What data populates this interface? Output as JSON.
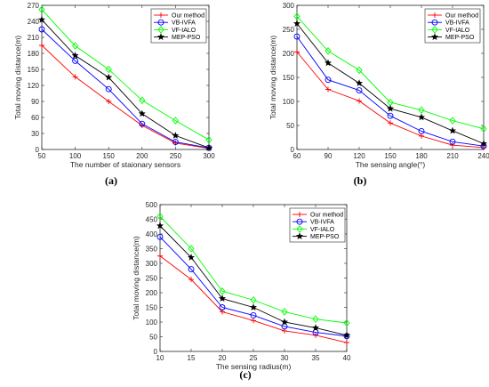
{
  "figure": {
    "panels": [
      "(a)",
      "(b)",
      "(c)"
    ]
  },
  "colors": {
    "Our method": "#ff0000",
    "VB-IVFA": "#0000ff",
    "VF-IALO": "#00ff00",
    "MEP-PSO": "#000000"
  },
  "chart_data": [
    {
      "type": "line",
      "panel": "(a)",
      "xlabel": "The number of staionary sensors",
      "ylabel": "Total moving distance(m)",
      "x": [
        50,
        100,
        150,
        200,
        250,
        300
      ],
      "xticks": [
        50,
        100,
        150,
        200,
        250,
        300
      ],
      "yticks": [
        0,
        30,
        60,
        90,
        120,
        150,
        180,
        210,
        240,
        270
      ],
      "xlim": [
        50,
        300
      ],
      "ylim": [
        0,
        270
      ],
      "legend_position": "top-right",
      "grid": false,
      "series": [
        {
          "name": "Our method",
          "marker": "plus",
          "values": [
            195,
            136,
            90,
            45,
            12,
            2
          ]
        },
        {
          "name": "VB-IVFA",
          "marker": "circle",
          "values": [
            225,
            166,
            113,
            48,
            14,
            3
          ]
        },
        {
          "name": "VF-IALO",
          "marker": "diamond",
          "values": [
            262,
            194,
            150,
            92,
            54,
            18
          ]
        },
        {
          "name": "MEP-PSO",
          "marker": "star",
          "values": [
            243,
            176,
            135,
            67,
            26,
            3
          ]
        }
      ]
    },
    {
      "type": "line",
      "panel": "(b)",
      "xlabel": "The sensing angle(°)",
      "ylabel": "Total moving distance(m)",
      "x": [
        60,
        90,
        120,
        150,
        180,
        210,
        240
      ],
      "xticks": [
        60,
        90,
        120,
        150,
        180,
        210,
        240
      ],
      "yticks": [
        0,
        50,
        100,
        150,
        200,
        250,
        300
      ],
      "xlim": [
        60,
        240
      ],
      "ylim": [
        0,
        300
      ],
      "legend_position": "top-right",
      "grid": false,
      "series": [
        {
          "name": "Our method",
          "marker": "plus",
          "values": [
            203,
            125,
            101,
            55,
            28,
            9,
            4
          ]
        },
        {
          "name": "VB-IVFA",
          "marker": "circle",
          "values": [
            235,
            145,
            123,
            70,
            38,
            16,
            7
          ]
        },
        {
          "name": "VF-IALO",
          "marker": "diamond",
          "values": [
            277,
            205,
            165,
            98,
            82,
            60,
            43
          ]
        },
        {
          "name": "MEP-PSO",
          "marker": "star",
          "values": [
            262,
            180,
            138,
            85,
            67,
            39,
            12
          ]
        }
      ]
    },
    {
      "type": "line",
      "panel": "(c)",
      "xlabel": "The sensing radius(m)",
      "ylabel": "Total moving distance(m)",
      "x": [
        10,
        15,
        20,
        25,
        30,
        35,
        40
      ],
      "xticks": [
        10,
        15,
        20,
        25,
        30,
        35,
        40
      ],
      "yticks": [
        0,
        50,
        100,
        150,
        200,
        250,
        300,
        350,
        400,
        450,
        500
      ],
      "xlim": [
        10,
        40
      ],
      "ylim": [
        0,
        500
      ],
      "legend_position": "top-right",
      "grid": false,
      "series": [
        {
          "name": "Our method",
          "marker": "plus",
          "values": [
            325,
            245,
            135,
            105,
            70,
            55,
            30
          ]
        },
        {
          "name": "VB-IVFA",
          "marker": "circle",
          "values": [
            390,
            280,
            150,
            123,
            85,
            65,
            52
          ]
        },
        {
          "name": "VF-IALO",
          "marker": "diamond",
          "values": [
            460,
            350,
            205,
            175,
            135,
            110,
            97
          ]
        },
        {
          "name": "MEP-PSO",
          "marker": "star",
          "values": [
            428,
            320,
            180,
            150,
            100,
            80,
            55
          ]
        }
      ]
    }
  ]
}
